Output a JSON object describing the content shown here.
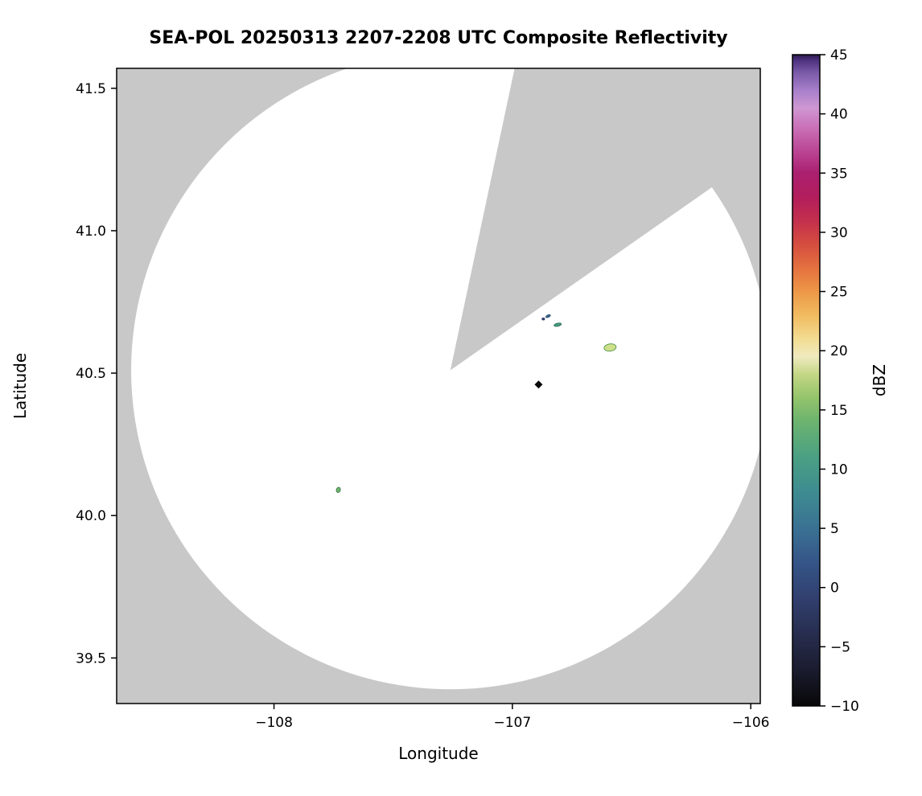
{
  "chart_data": {
    "type": "heatmap",
    "subtype": "radar-composite-reflectivity-ppi",
    "title": "SEA-POL 20250313 2207-2208 UTC Composite Reflectivity",
    "xlabel": "Longitude",
    "ylabel": "Latitude",
    "colorbar_label": "dBZ",
    "xlim": [
      -108.66,
      -105.96
    ],
    "ylim": [
      39.34,
      41.57
    ],
    "xticks": [
      -108,
      -107,
      -106
    ],
    "yticks": [
      39.5,
      40.0,
      40.5,
      41.0,
      41.5
    ],
    "grid": false,
    "figure_background": "#ffffff",
    "radar": {
      "center_lon": -107.26,
      "center_lat": 40.51,
      "coverage_radius_deg_lat": 1.12,
      "blocked_sector_azimuth_deg": [
        12,
        55
      ],
      "masked_color": "#c8c8c8",
      "clear_air_color": "#ffffff"
    },
    "colorbar": {
      "vmin": -10,
      "vmax": 45,
      "ticks": [
        -10,
        -5,
        0,
        5,
        10,
        15,
        20,
        25,
        30,
        35,
        40,
        45
      ],
      "stops": [
        {
          "v": -10,
          "color": "#080808"
        },
        {
          "v": -7,
          "color": "#1a1b2e"
        },
        {
          "v": -4,
          "color": "#272d4e"
        },
        {
          "v": -1,
          "color": "#313f6e"
        },
        {
          "v": 2,
          "color": "#355487"
        },
        {
          "v": 5,
          "color": "#3a7193"
        },
        {
          "v": 8,
          "color": "#3e8b91"
        },
        {
          "v": 11,
          "color": "#4aa083"
        },
        {
          "v": 14,
          "color": "#6bb36f"
        },
        {
          "v": 16,
          "color": "#93c46b"
        },
        {
          "v": 18,
          "color": "#c4d685"
        },
        {
          "v": 19.5,
          "color": "#efeabf"
        },
        {
          "v": 21,
          "color": "#f3dc92"
        },
        {
          "v": 23,
          "color": "#f1bb60"
        },
        {
          "v": 25,
          "color": "#ed9747"
        },
        {
          "v": 27,
          "color": "#e4713f"
        },
        {
          "v": 29,
          "color": "#d54d3f"
        },
        {
          "v": 31,
          "color": "#c32f4d"
        },
        {
          "v": 33,
          "color": "#b21d5c"
        },
        {
          "v": 35,
          "color": "#ab2070"
        },
        {
          "v": 37,
          "color": "#bb4896"
        },
        {
          "v": 39,
          "color": "#cb74bb"
        },
        {
          "v": 40.5,
          "color": "#cf97d3"
        },
        {
          "v": 42,
          "color": "#a77fca"
        },
        {
          "v": 43.5,
          "color": "#7a5aa8"
        },
        {
          "v": 44.5,
          "color": "#4f3380"
        },
        {
          "v": 45,
          "color": "#2c1a4e"
        }
      ]
    },
    "echoes": [
      {
        "lon": -106.85,
        "lat": 40.7,
        "dbz": 5,
        "shape": "ellipse",
        "rx": 3.0,
        "ry": 1.4,
        "rot": -25,
        "fill": "#3a7193",
        "stroke": "#2c4a6e"
      },
      {
        "lon": -106.81,
        "lat": 40.67,
        "dbz": 10,
        "shape": "ellipse",
        "rx": 4.5,
        "ry": 1.8,
        "rot": -12,
        "fill": "#4aa083",
        "stroke": "#2f6e57"
      },
      {
        "lon": -106.87,
        "lat": 40.69,
        "dbz": 0,
        "shape": "ellipse",
        "rx": 1.6,
        "ry": 1.2,
        "rot": 0,
        "fill": "#313f6e",
        "stroke": "#313f6e"
      },
      {
        "lon": -106.59,
        "lat": 40.59,
        "dbz": 15,
        "shape": "ellipse",
        "rx": 7.5,
        "ry": 4.5,
        "rot": -8,
        "fill": "#cfe08a",
        "stroke": "#5e9c53"
      },
      {
        "lon": -106.89,
        "lat": 40.46,
        "dbz": -10,
        "shape": "diamond",
        "size": 5,
        "fill": "#0a0a0a"
      },
      {
        "lon": -107.73,
        "lat": 40.09,
        "dbz": 10,
        "shape": "ellipse",
        "rx": 2.4,
        "ry": 3.2,
        "rot": 18,
        "fill": "#74b56d",
        "stroke": "#3f7d4f"
      }
    ]
  }
}
